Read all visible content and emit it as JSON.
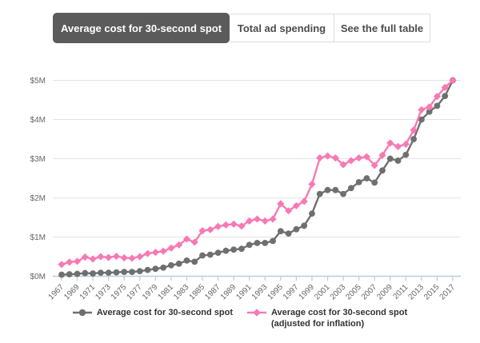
{
  "tabs": [
    {
      "label": "Average cost for 30-second spot",
      "active": true
    },
    {
      "label": "Total ad spending",
      "active": false
    },
    {
      "label": "See the full table",
      "active": false
    }
  ],
  "legend": {
    "nominal_label": "Average cost for 30-second spot",
    "adjusted_label_line1": "Average cost for 30-second spot",
    "adjusted_label_line2": "(adjusted for inflation)"
  },
  "colors": {
    "accent_pink": "#f879b3",
    "line_gray": "#6f6f6f",
    "active_tab_bg": "#5b5b5b",
    "grid": "#e3e3e3",
    "axis": "#b9cce0",
    "tick_text": "#666666"
  },
  "chart_data": {
    "type": "line",
    "title": "Average cost for 30-second spot",
    "xlabel": "",
    "ylabel": "",
    "unit": "$M",
    "ylim": [
      0,
      5
    ],
    "grid": "horizontal",
    "legend_position": "bottom",
    "x": [
      1967,
      1968,
      1969,
      1970,
      1971,
      1972,
      1973,
      1974,
      1975,
      1976,
      1977,
      1978,
      1979,
      1980,
      1981,
      1982,
      1983,
      1984,
      1985,
      1986,
      1987,
      1988,
      1989,
      1990,
      1991,
      1992,
      1993,
      1994,
      1995,
      1996,
      1997,
      1998,
      1999,
      2000,
      2001,
      2002,
      2003,
      2004,
      2005,
      2006,
      2007,
      2008,
      2009,
      2010,
      2011,
      2012,
      2013,
      2014,
      2015,
      2016,
      2017
    ],
    "xtick_labels": [
      "1967",
      "1969",
      "1971",
      "1973",
      "1975",
      "1977",
      "1979",
      "1981",
      "1983",
      "1985",
      "1987",
      "1989",
      "1991",
      "1993",
      "1995",
      "1997",
      "1999",
      "2001",
      "2003",
      "2005",
      "2007",
      "2009",
      "2011",
      "2013",
      "2015",
      "2017"
    ],
    "ytick_values": [
      0,
      1,
      2,
      3,
      4,
      5
    ],
    "ytick_labels": [
      "$0M",
      "$1M",
      "$2M",
      "$3M",
      "$4M",
      "$5M"
    ],
    "series": [
      {
        "name": "Average cost for 30-second spot",
        "color": "#6f6f6f",
        "marker": "circle",
        "values": [
          0.04,
          0.05,
          0.06,
          0.08,
          0.07,
          0.09,
          0.09,
          0.1,
          0.11,
          0.11,
          0.13,
          0.16,
          0.19,
          0.22,
          0.28,
          0.32,
          0.4,
          0.37,
          0.53,
          0.55,
          0.6,
          0.65,
          0.68,
          0.7,
          0.8,
          0.85,
          0.85,
          0.9,
          1.15,
          1.09,
          1.2,
          1.29,
          1.6,
          2.1,
          2.2,
          2.2,
          2.1,
          2.25,
          2.4,
          2.5,
          2.39,
          2.7,
          3.0,
          2.95,
          3.1,
          3.5,
          4.0,
          4.2,
          4.35,
          4.6,
          5.0
        ]
      },
      {
        "name": "Average cost for 30-second spot (adjusted for inflation)",
        "color": "#f879b3",
        "marker": "diamond",
        "values": [
          0.3,
          0.36,
          0.38,
          0.49,
          0.44,
          0.5,
          0.48,
          0.51,
          0.47,
          0.46,
          0.5,
          0.58,
          0.61,
          0.64,
          0.72,
          0.8,
          0.95,
          0.87,
          1.16,
          1.19,
          1.27,
          1.31,
          1.33,
          1.28,
          1.41,
          1.46,
          1.41,
          1.46,
          1.85,
          1.67,
          1.8,
          1.91,
          2.35,
          3.02,
          3.07,
          3.02,
          2.85,
          2.95,
          3.02,
          3.05,
          2.83,
          3.09,
          3.4,
          3.31,
          3.37,
          3.73,
          4.25,
          4.32,
          4.59,
          4.82,
          5.0
        ]
      }
    ]
  }
}
